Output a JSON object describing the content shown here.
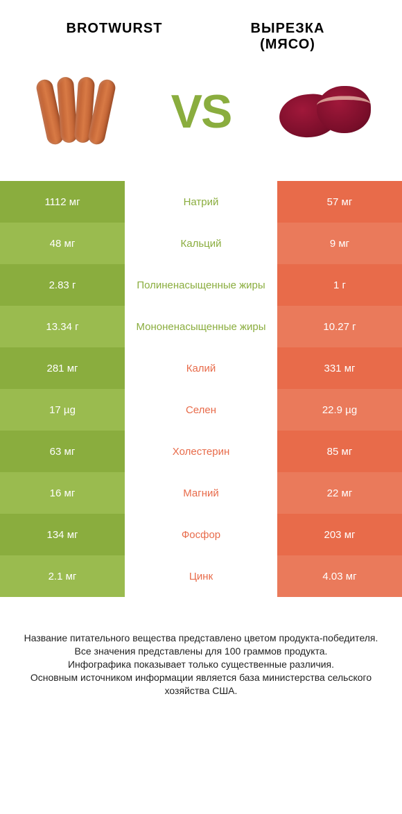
{
  "product_left": {
    "title": "BROTWURST"
  },
  "product_right": {
    "title_line1": "ВЫРЕЗКА",
    "title_line2": "(МЯСО)"
  },
  "vs_label": "VS",
  "colors": {
    "green": "#8aad3e",
    "green_alt": "#9abb4f",
    "orange": "#e86b4a",
    "orange_alt": "#ea7a5b",
    "label_green": "#8aad3e",
    "label_orange": "#e86b4a"
  },
  "rows": [
    {
      "left": "1112 мг",
      "label": "Натрий",
      "right": "57 мг",
      "winner": "left"
    },
    {
      "left": "48 мг",
      "label": "Кальций",
      "right": "9 мг",
      "winner": "left"
    },
    {
      "left": "2.83 г",
      "label": "Полиненасыщенные жиры",
      "right": "1 г",
      "winner": "left"
    },
    {
      "left": "13.34 г",
      "label": "Мононенасыщенные жиры",
      "right": "10.27 г",
      "winner": "left"
    },
    {
      "left": "281 мг",
      "label": "Калий",
      "right": "331 мг",
      "winner": "right"
    },
    {
      "left": "17 µg",
      "label": "Селен",
      "right": "22.9 µg",
      "winner": "right"
    },
    {
      "left": "63 мг",
      "label": "Холестерин",
      "right": "85 мг",
      "winner": "right"
    },
    {
      "left": "16 мг",
      "label": "Магний",
      "right": "22 мг",
      "winner": "right"
    },
    {
      "left": "134 мг",
      "label": "Фосфор",
      "right": "203 мг",
      "winner": "right"
    },
    {
      "left": "2.1 мг",
      "label": "Цинк",
      "right": "4.03 мг",
      "winner": "right"
    }
  ],
  "disclaimer": "Название питательного вещества представлено цветом продукта-победителя.\nВсе значения представлены для 100 граммов продукта.\nИнфографика показывает только существенные различия.\nОсновным источником информации является база министерства сельского хозяйства США."
}
